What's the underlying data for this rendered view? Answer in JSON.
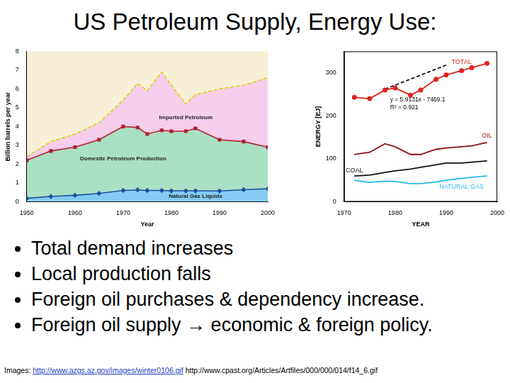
{
  "title": "US Petroleum Supply, Energy Use:",
  "chart_data": [
    {
      "type": "area",
      "stacked": true,
      "grid": false,
      "xlabel": "Year",
      "ylabel": "Billion barrels per year",
      "x": [
        1950,
        1955,
        1960,
        1965,
        1970,
        1973,
        1975,
        1978,
        1980,
        1983,
        1985,
        1990,
        1995,
        2000
      ],
      "xlim": [
        1950,
        2000
      ],
      "xticks": [
        1950,
        1960,
        1970,
        1980,
        1990,
        2000
      ],
      "ylim": [
        0,
        8
      ],
      "yticks": [
        0,
        1,
        2,
        3,
        4,
        5,
        6,
        7,
        8
      ],
      "series": [
        {
          "name": "Natural Gas Liquids",
          "color": "#1f4fa0",
          "marker": "diamond",
          "line_style": "solid",
          "values": [
            0.18,
            0.28,
            0.34,
            0.44,
            0.6,
            0.63,
            0.6,
            0.6,
            0.58,
            0.58,
            0.58,
            0.57,
            0.64,
            0.69
          ]
        },
        {
          "name": "Domestic Petroleum Production",
          "color": "#b22030",
          "marker": "square",
          "line_style": "solid",
          "values": [
            2.02,
            2.42,
            2.56,
            2.86,
            3.4,
            3.32,
            3.0,
            3.2,
            3.17,
            3.17,
            3.32,
            2.73,
            2.56,
            2.21
          ]
        },
        {
          "name": "Imported Petroleum",
          "color": "#d8d000",
          "marker": "none",
          "line_style": "dashed",
          "values": [
            0.2,
            0.5,
            0.7,
            0.9,
            1.4,
            2.35,
            2.3,
            3.1,
            2.45,
            1.45,
            1.8,
            2.7,
            3.0,
            3.7
          ]
        }
      ]
    },
    {
      "type": "line",
      "grid": false,
      "xlabel": "YEAR",
      "ylabel": "ENERGY [EJ]",
      "x": [
        1972,
        1975,
        1978,
        1980,
        1983,
        1985,
        1988,
        1990,
        1993,
        1995,
        1998
      ],
      "xlim": [
        1970,
        2000
      ],
      "xticks": [
        1970,
        1980,
        1990,
        2000
      ],
      "ylim": [
        0,
        350
      ],
      "yticks": [
        0,
        100,
        200,
        300
      ],
      "annotation": [
        "y = 5.9131x - 7469.1",
        "R² = 0.921"
      ],
      "series": [
        {
          "name": "TOTAL",
          "color": "#e0201b",
          "marker": "circle",
          "line_style": "solid",
          "values": [
            243,
            240,
            260,
            265,
            248,
            260,
            285,
            295,
            305,
            312,
            322
          ]
        },
        {
          "name": "OIL",
          "color": "#8b1010",
          "marker": "none",
          "line_style": "solid",
          "values": [
            110,
            115,
            135,
            128,
            110,
            110,
            122,
            125,
            128,
            130,
            138
          ]
        },
        {
          "name": "COAL",
          "color": "#111111",
          "marker": "none",
          "line_style": "solid",
          "values": [
            60,
            62,
            68,
            72,
            76,
            80,
            86,
            90,
            90,
            92,
            95
          ]
        },
        {
          "name": "NATURAL GAS",
          "color": "#20b8e8",
          "marker": "none",
          "line_style": "solid",
          "values": [
            50,
            45,
            48,
            47,
            42,
            42,
            46,
            50,
            54,
            57,
            60
          ]
        },
        {
          "color": "#111111",
          "marker": "none",
          "line_style": "dashed",
          "values": [
            null,
            null,
            262,
            null,
            null,
            null,
            null,
            318,
            null,
            null,
            null
          ]
        }
      ]
    }
  ],
  "bullets": [
    "Total demand increases",
    "Local production falls",
    "Foreign oil purchases & dependency increase.",
    "Foreign oil supply → economic & foreign policy."
  ],
  "source": {
    "label": "Images:",
    "links": [
      "http://www.azgs.az.gov/images/winter0106.gif",
      "http://www.cpast.org/Articles/Artfiles/000/000/014/f14_6.gif"
    ]
  }
}
